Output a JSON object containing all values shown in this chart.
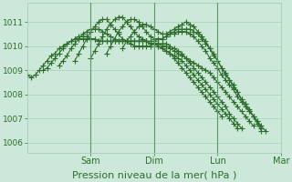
{
  "background_color": "#cce8d8",
  "plot_bg_color": "#cce8d8",
  "line_color": "#2d6e2d",
  "marker": "+",
  "markersize": 4,
  "linewidth": 0.8,
  "markeredgewidth": 0.8,
  "xlabel": "Pression niveau de la mer( hPa )",
  "xlabel_fontsize": 8,
  "yticks": [
    1006,
    1007,
    1008,
    1009,
    1010,
    1011
  ],
  "ylim": [
    1005.6,
    1011.8
  ],
  "xlim": [
    0,
    96
  ],
  "xtick_positions": [
    24,
    48,
    72,
    96
  ],
  "xtick_labels": [
    "Sam",
    "Dim",
    "Lun",
    "Mar"
  ],
  "grid_color": "#a0c8b0",
  "vline_color": "#5a9a6a",
  "series": [
    {
      "x_start": 0,
      "y": [
        1008.8,
        1008.7,
        1008.8,
        1009.0,
        1009.2,
        1009.4,
        1009.6,
        1009.7,
        1009.9,
        1010.0,
        1010.1,
        1010.2,
        1010.3,
        1010.3,
        1010.3,
        1010.3,
        1010.3,
        1010.3,
        1010.2,
        1010.2,
        1010.2,
        1010.2,
        1010.2,
        1010.2,
        1010.2,
        1010.2,
        1010.2,
        1010.2,
        1010.2,
        1010.2,
        1010.2,
        1010.1,
        1010.1,
        1010.1,
        1010.0,
        1010.0,
        1009.9,
        1009.8,
        1009.7,
        1009.6,
        1009.5,
        1009.4,
        1009.3,
        1009.2,
        1009.1,
        1009.0,
        1008.9,
        1008.7,
        1008.5,
        1008.3,
        1008.1,
        1007.9,
        1007.7,
        1007.5,
        1007.3,
        1007.1,
        1006.9,
        1006.7
      ]
    },
    {
      "x_start": 6,
      "y": [
        1009.0,
        1009.1,
        1009.3,
        1009.5,
        1009.7,
        1009.9,
        1010.1,
        1010.2,
        1010.3,
        1010.4,
        1010.4,
        1010.4,
        1010.3,
        1010.3,
        1010.2,
        1010.2,
        1010.2,
        1010.2,
        1010.2,
        1010.2,
        1010.2,
        1010.2,
        1010.2,
        1010.2,
        1010.2,
        1010.2,
        1010.2,
        1010.1,
        1010.1,
        1010.0,
        1009.9,
        1009.8,
        1009.7,
        1009.6,
        1009.5,
        1009.4,
        1009.2,
        1009.0,
        1008.8,
        1008.6,
        1008.4,
        1008.2,
        1008.0,
        1007.8,
        1007.6,
        1007.4,
        1007.2,
        1007.0,
        1006.8,
        1006.6
      ]
    },
    {
      "x_start": 12,
      "y": [
        1009.2,
        1009.4,
        1009.6,
        1009.9,
        1010.1,
        1010.3,
        1010.5,
        1010.6,
        1010.7,
        1010.7,
        1010.7,
        1010.6,
        1010.5,
        1010.4,
        1010.3,
        1010.2,
        1010.2,
        1010.2,
        1010.2,
        1010.2,
        1010.2,
        1010.2,
        1010.2,
        1010.1,
        1010.1,
        1010.0,
        1009.9,
        1009.8,
        1009.7,
        1009.5,
        1009.3,
        1009.1,
        1008.9,
        1008.7,
        1008.5,
        1008.3,
        1008.1,
        1007.9,
        1007.7,
        1007.5,
        1007.3,
        1007.1
      ]
    },
    {
      "x_start": 18,
      "y": [
        1009.4,
        1009.7,
        1010.0,
        1010.3,
        1010.6,
        1010.8,
        1011.0,
        1011.1,
        1011.1,
        1010.9,
        1010.7,
        1010.5,
        1010.3,
        1010.2,
        1010.1,
        1010.0,
        1010.0,
        1010.0,
        1010.0,
        1010.0,
        1010.1,
        1010.1,
        1010.1,
        1010.1,
        1010.0,
        1009.9,
        1009.8,
        1009.7,
        1009.5,
        1009.3,
        1009.1,
        1008.9,
        1008.7,
        1008.5,
        1008.3,
        1008.1,
        1007.9,
        1007.7,
        1007.5,
        1007.2,
        1007.0,
        1006.8,
        1006.6
      ]
    },
    {
      "x_start": 24,
      "y": [
        1009.5,
        1009.8,
        1010.1,
        1010.4,
        1010.7,
        1010.9,
        1011.1,
        1011.2,
        1011.2,
        1011.0,
        1010.8,
        1010.6,
        1010.4,
        1010.3,
        1010.2,
        1010.2,
        1010.2,
        1010.3,
        1010.3,
        1010.4,
        1010.5,
        1010.5,
        1010.6,
        1010.6,
        1010.6,
        1010.5,
        1010.4,
        1010.2,
        1010.0,
        1009.8,
        1009.5,
        1009.3,
        1009.1,
        1008.8,
        1008.6,
        1008.4,
        1008.2,
        1007.9,
        1007.7,
        1007.5,
        1007.3,
        1007.1,
        1006.9,
        1006.7,
        1006.5
      ]
    },
    {
      "x_start": 30,
      "y": [
        1009.7,
        1010.0,
        1010.3,
        1010.6,
        1010.8,
        1011.0,
        1011.1,
        1011.1,
        1011.0,
        1010.8,
        1010.6,
        1010.4,
        1010.3,
        1010.3,
        1010.3,
        1010.4,
        1010.5,
        1010.6,
        1010.7,
        1010.7,
        1010.7,
        1010.7,
        1010.6,
        1010.5,
        1010.3,
        1010.1,
        1009.9,
        1009.6,
        1009.4,
        1009.1,
        1008.8,
        1008.6,
        1008.3,
        1008.1,
        1007.8,
        1007.6,
        1007.4,
        1007.1,
        1006.9,
        1006.6
      ]
    },
    {
      "x_start": 36,
      "y": [
        1009.9,
        1010.2,
        1010.4,
        1010.6,
        1010.8,
        1010.9,
        1010.9,
        1010.8,
        1010.7,
        1010.6,
        1010.5,
        1010.5,
        1010.6,
        1010.7,
        1010.8,
        1010.9,
        1011.0,
        1010.9,
        1010.8,
        1010.6,
        1010.4,
        1010.2,
        1009.9,
        1009.7,
        1009.4,
        1009.1,
        1008.9,
        1008.6,
        1008.4,
        1008.1,
        1007.8,
        1007.6,
        1007.3,
        1007.1,
        1006.8,
        1006.5
      ]
    }
  ]
}
